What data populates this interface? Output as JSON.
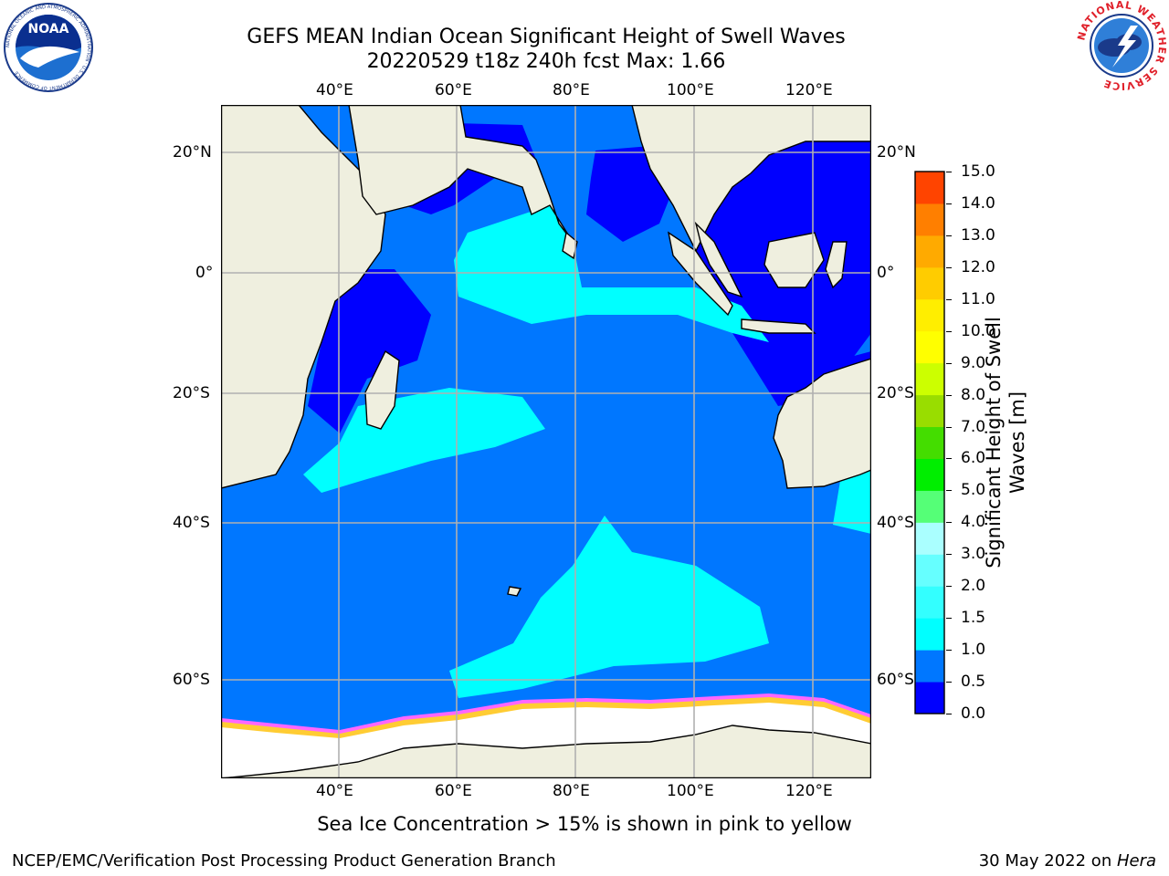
{
  "title_line1": "GEFS MEAN Indian Ocean Significant Height of Swell Waves",
  "title_line2": "20220529 t18z 240h fcst   Max: 1.66",
  "logos": {
    "noaa_text": "NOAA",
    "noaa_ring": "NATIONAL OCEANIC AND ATMOSPHERIC ADMINISTRATION · U.S. DEPARTMENT OF COMMERCE",
    "nws_ring": "NATIONAL WEATHER SERVICE"
  },
  "lon_labels": [
    "40°E",
    "60°E",
    "80°E",
    "100°E",
    "120°E"
  ],
  "lat_labels": [
    "20°N",
    "0°",
    "20°S",
    "40°S",
    "60°S"
  ],
  "colorbar": {
    "label_line1": "Significant Height of Swell",
    "label_line2": "Waves [m]",
    "ticks": [
      "0.0",
      "0.5",
      "1.0",
      "1.5",
      "2.0",
      "3.0",
      "4.0",
      "5.0",
      "6.0",
      "7.0",
      "8.0",
      "9.0",
      "10.0",
      "11.0",
      "12.0",
      "13.0",
      "14.0",
      "15.0"
    ],
    "colors": [
      "#0000ff",
      "#0077ff",
      "#00ffff",
      "#33ffff",
      "#66ffff",
      "#aaffff",
      "#55ff77",
      "#00ee00",
      "#44dd00",
      "#99dd00",
      "#ccff00",
      "#ffff00",
      "#ffee00",
      "#ffcc00",
      "#ffaa00",
      "#ff7f00",
      "#ff4400",
      "#ff0000"
    ]
  },
  "map_colors": {
    "land": "#efefdf",
    "ocean_main": "#0077ff",
    "ocean_low": "#0000ff",
    "swell_mid": "#00ffff",
    "ice_edge_pink": "#ff66ff",
    "ice_edge_yellow": "#ffcc33",
    "ice": "#ffffff",
    "grid": "#b0b0b0"
  },
  "note": "Sea Ice Concentration > 15% is shown in pink to yellow",
  "footer_left": "NCEP/EMC/Verification Post Processing Product Generation Branch",
  "footer_date": "30 May 2022 on ",
  "footer_machine": "Hera"
}
